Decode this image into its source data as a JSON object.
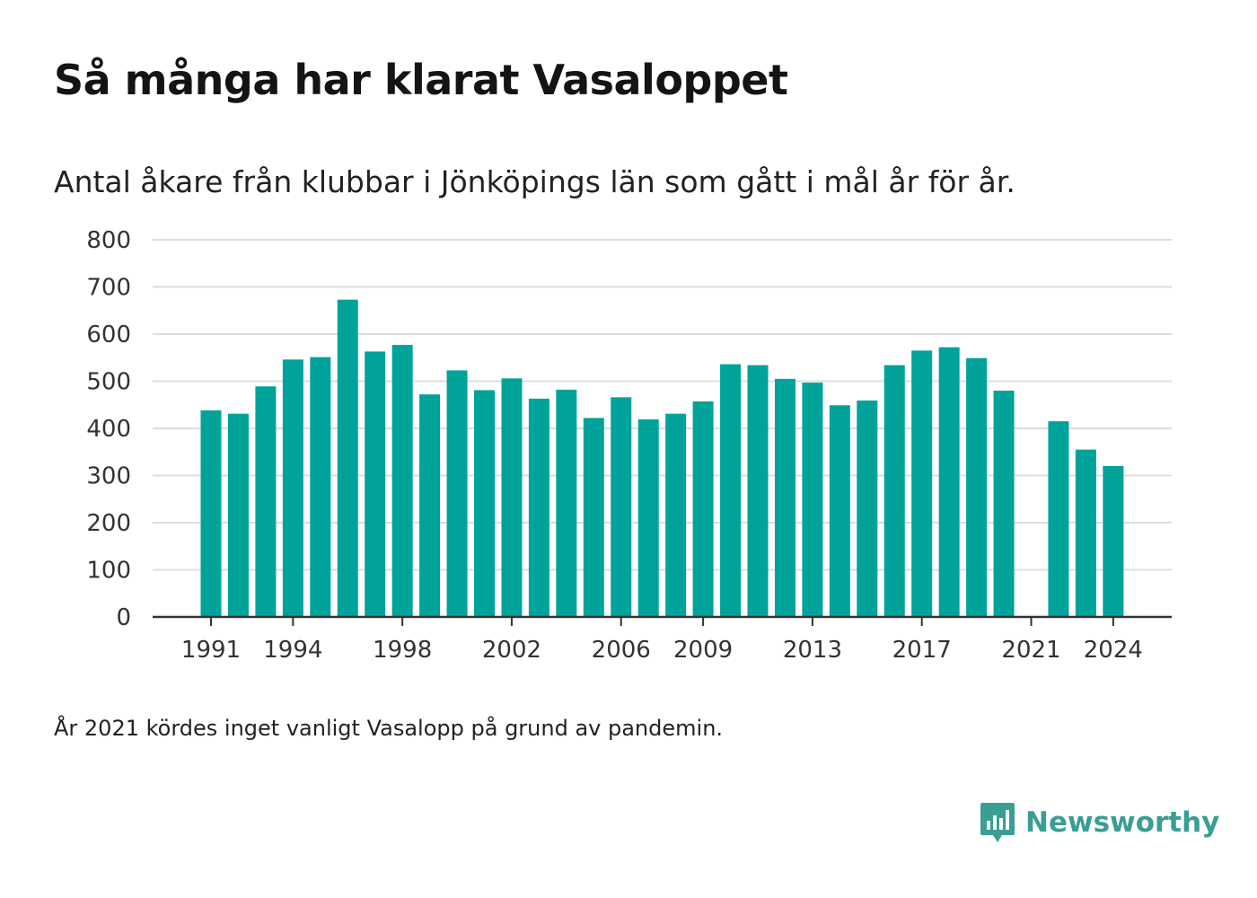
{
  "title": "Så många har klarat Vasaloppet",
  "subtitle": "Antal åkare från klubbar i Jönköpings län som gått i mål år för år.",
  "note": "År 2021 kördes inget vanligt Vasalopp på grund av pandemin.",
  "brand": {
    "name": "Newsworthy",
    "icon": "newsworthy-logo-icon"
  },
  "colors": {
    "bar": "#00a39a",
    "grid": "#dddddd",
    "axis": "#333333",
    "brand": "#3a9e95"
  },
  "chart_data": {
    "type": "bar",
    "title": "Så många har klarat Vasaloppet",
    "subtitle": "Antal åkare från klubbar i Jönköpings län som gått i mål år för år.",
    "xlabel": "",
    "ylabel": "",
    "ylim": [
      0,
      800
    ],
    "yticks": [
      0,
      100,
      200,
      300,
      400,
      500,
      600,
      700,
      800
    ],
    "xticks": [
      1991,
      1994,
      1998,
      2002,
      2006,
      2009,
      2013,
      2017,
      2021,
      2024
    ],
    "grid": true,
    "legend": "none",
    "categories": [
      1991,
      1992,
      1993,
      1994,
      1995,
      1996,
      1997,
      1998,
      1999,
      2000,
      2001,
      2002,
      2003,
      2004,
      2005,
      2006,
      2007,
      2008,
      2009,
      2010,
      2011,
      2012,
      2013,
      2014,
      2015,
      2016,
      2017,
      2018,
      2019,
      2020,
      2021,
      2022,
      2023,
      2024
    ],
    "values": [
      438,
      431,
      489,
      546,
      551,
      673,
      563,
      577,
      472,
      523,
      481,
      506,
      463,
      482,
      422,
      466,
      419,
      431,
      457,
      536,
      534,
      505,
      497,
      449,
      459,
      534,
      565,
      572,
      549,
      480,
      null,
      415,
      355,
      320
    ]
  }
}
